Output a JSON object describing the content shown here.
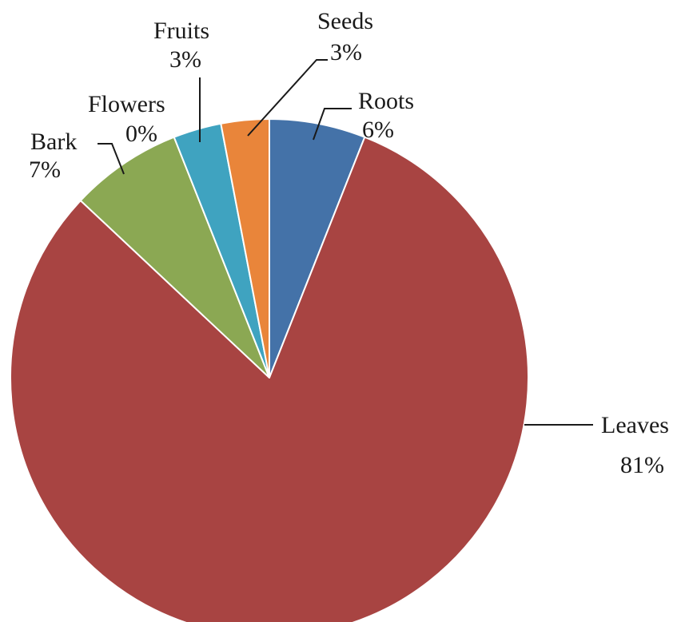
{
  "chart_data": {
    "type": "pie",
    "title": "",
    "categories": [
      "Roots",
      "Leaves",
      "Bark",
      "Flowers",
      "Fruits",
      "Seeds"
    ],
    "values": [
      6,
      81,
      7,
      0,
      3,
      3
    ],
    "value_labels": [
      "6%",
      "81%",
      "7%",
      "0%",
      "3%",
      "3%"
    ],
    "colors": [
      "#4472A8",
      "#A84442",
      "#8BA853",
      "#7A5EA0",
      "#3FA3C0",
      "#E9853A"
    ],
    "legend": "none"
  }
}
